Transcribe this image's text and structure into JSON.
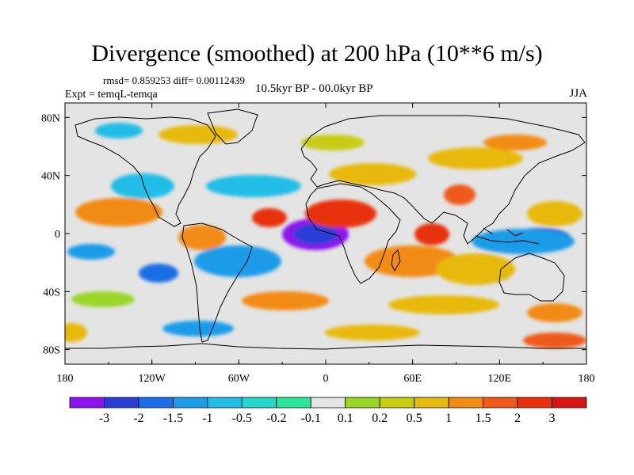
{
  "title": "Divergence (smoothed) at 200 hPa (10**6 m/s)",
  "stats": "rmsd= 0.859253 diff= 0.00112439",
  "experiment": "Expt = temqL-temqa",
  "period": "10.5kyr BP - 00.0kyr BP",
  "season": "JJA",
  "x_ticks": [
    "180",
    "120W",
    "60W",
    "0",
    "60E",
    "120E",
    "180"
  ],
  "y_ticks": [
    "80N",
    "40N",
    "0",
    "40S",
    "80S"
  ],
  "colorbar": {
    "labels": [
      "-3",
      "-2",
      "-1.5",
      "-1",
      "-0.5",
      "-0.2",
      "-0.1",
      "0.1",
      "0.2",
      "0.5",
      "1",
      "1.5",
      "2",
      "3"
    ],
    "colors": [
      "#8c14ec",
      "#2a3ed6",
      "#1c6ee6",
      "#1e9ce8",
      "#24bde6",
      "#26d6cc",
      "#2ee39a",
      "#e4e4e4",
      "#9ad62a",
      "#c7cd12",
      "#e8b90f",
      "#f28b16",
      "#ef5a1a",
      "#e8300f",
      "#d71414"
    ]
  },
  "neutral_color": "#e4e4e4"
}
